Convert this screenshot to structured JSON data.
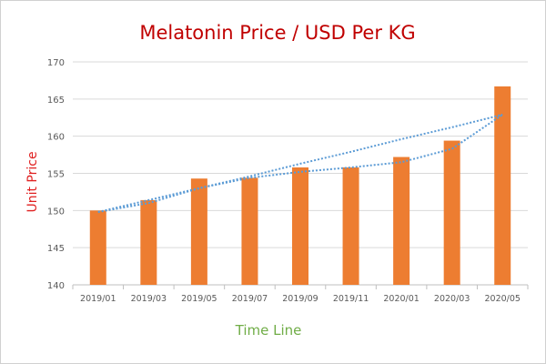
{
  "chart_data": {
    "type": "bar",
    "title": "Melatonin Price / USD Per KG",
    "xlabel": "Time Line",
    "ylabel": "Unit Price",
    "categories": [
      "2019/01",
      "2019/03",
      "2019/05",
      "2019/07",
      "2019/09",
      "2019/11",
      "2020/01",
      "2020/03",
      "2020/05"
    ],
    "series": [
      {
        "type": "bar",
        "values": [
          150.0,
          151.4,
          154.3,
          154.4,
          155.8,
          155.8,
          157.2,
          159.4,
          166.7
        ],
        "color": "#ed7d31"
      },
      {
        "type": "line",
        "style": "dotted",
        "values": [
          149.8,
          151.4,
          153.0,
          154.6,
          156.3,
          157.9,
          159.6,
          161.2,
          162.9
        ],
        "color": "#5b9bd5"
      },
      {
        "type": "line",
        "style": "dotted",
        "values": [
          149.8,
          151.0,
          153.0,
          154.4,
          155.2,
          155.8,
          156.5,
          158.3,
          162.9
        ],
        "color": "#5b9bd5"
      }
    ],
    "ylim": [
      140,
      170
    ],
    "yticks": [
      140,
      145,
      150,
      155,
      160,
      165,
      170
    ],
    "grid": true,
    "colors": {
      "title": "#c00000",
      "ylabel": "#e02020",
      "xlabel": "#70ad47",
      "grid": "#d9d9d9",
      "ticks": "#595959"
    }
  }
}
